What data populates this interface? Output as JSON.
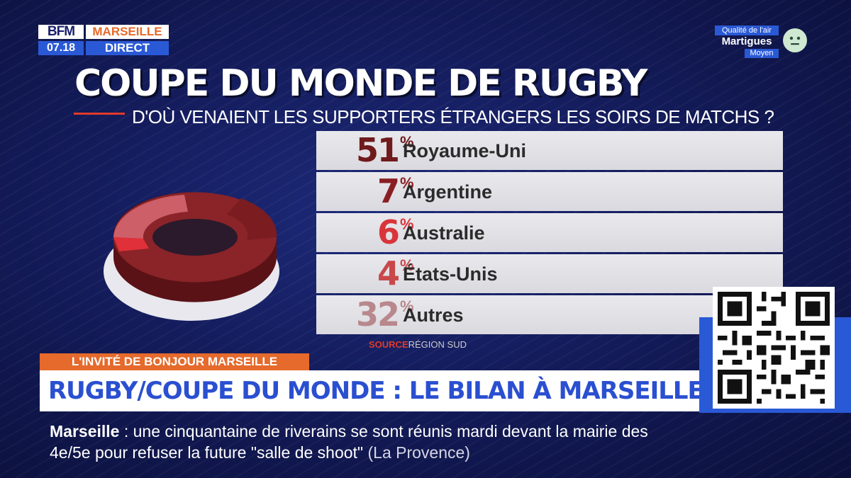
{
  "channel": {
    "logo": "BFM",
    "city": "MARSEILLE",
    "time": "07.18",
    "live": "DIRECT"
  },
  "air_quality": {
    "label": "Qualité de l'air",
    "city": "Martigues",
    "level": "Moyen",
    "icon": "neutral-face-icon",
    "color": "#cfe8d2"
  },
  "title": "COUPE DU MONDE DE RUGBY",
  "subtitle": "D'OÙ VENAIENT LES SUPPORTERS ÉTRANGERS LES SOIRS DE MATCHS ?",
  "rows": [
    {
      "value": "51",
      "sign": "%",
      "label": "Royaume-Uni",
      "color": "#6f1a1c"
    },
    {
      "value": "7",
      "sign": "%",
      "label": "Argentine",
      "color": "#8a1f23"
    },
    {
      "value": "6",
      "sign": "%",
      "label": "Australie",
      "color": "#d8353a"
    },
    {
      "value": "4",
      "sign": "%",
      "label": "États-Unis",
      "color": "#c9484a"
    },
    {
      "value": "32",
      "sign": "%",
      "label": "Autres",
      "color": "#b8888c"
    }
  ],
  "source": {
    "label": "SOURCE",
    "text": "RÉGION SUD"
  },
  "lower_third": {
    "invite": "L'INVITÉ DE BONJOUR MARSEILLE",
    "headline": "RUGBY/COUPE DU MONDE : LE BILAN À MARSEILLE"
  },
  "ticker": {
    "city": "Marseille",
    "sep": " : ",
    "text": "une cinquantaine de riverains se sont réunis mardi devant la mairie des 4e/5e pour refuser la future \"salle de shoot\"",
    "source": " (La Provence)"
  },
  "colors": {
    "brand_blue": "#2a59d6",
    "accent_orange": "#e56a2b",
    "accent_red": "#e03a2b"
  }
}
